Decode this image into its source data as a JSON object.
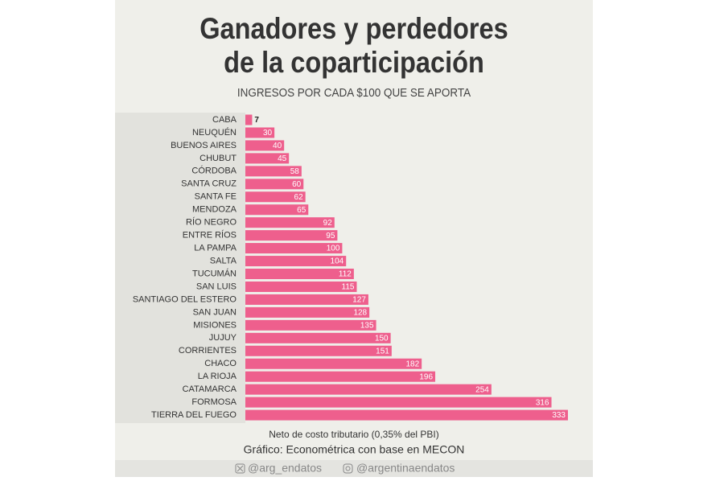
{
  "chart_data": {
    "type": "bar",
    "orientation": "horizontal",
    "title": "Ganadores y perdedores de la coparticipación",
    "title_lines": [
      "Ganadores y perdedores",
      "de la coparticipación"
    ],
    "subtitle": "INGRESOS POR CADA $100 QUE SE APORTA",
    "categories": [
      "CABA",
      "NEUQUÉN",
      "BUENOS AIRES",
      "CHUBUT",
      "CÓRDOBA",
      "SANTA CRUZ",
      "SANTA FE",
      "MENDOZA",
      "RÍO NEGRO",
      "ENTRE RÍOS",
      "LA PAMPA",
      "SALTA",
      "TUCUMÁN",
      "SAN LUIS",
      "SANTIAGO DEL ESTERO",
      "SAN JUAN",
      "MISIONES",
      "JUJUY",
      "CORRIENTES",
      "CHACO",
      "LA RIOJA",
      "CATAMARCA",
      "FORMOSA",
      "TIERRA DEL FUEGO"
    ],
    "values": [
      7,
      30,
      40,
      45,
      58,
      60,
      62,
      65,
      92,
      95,
      100,
      104,
      112,
      115,
      127,
      128,
      135,
      150,
      151,
      182,
      196,
      254,
      316,
      333
    ],
    "color": "#ee5f8d",
    "note": "Neto de costo tributario (0,35% del PBI)",
    "source": "Gráfico: Econométrica con base en MECON",
    "social": [
      "@arg_endatos",
      "@argentinaendatos"
    ]
  }
}
